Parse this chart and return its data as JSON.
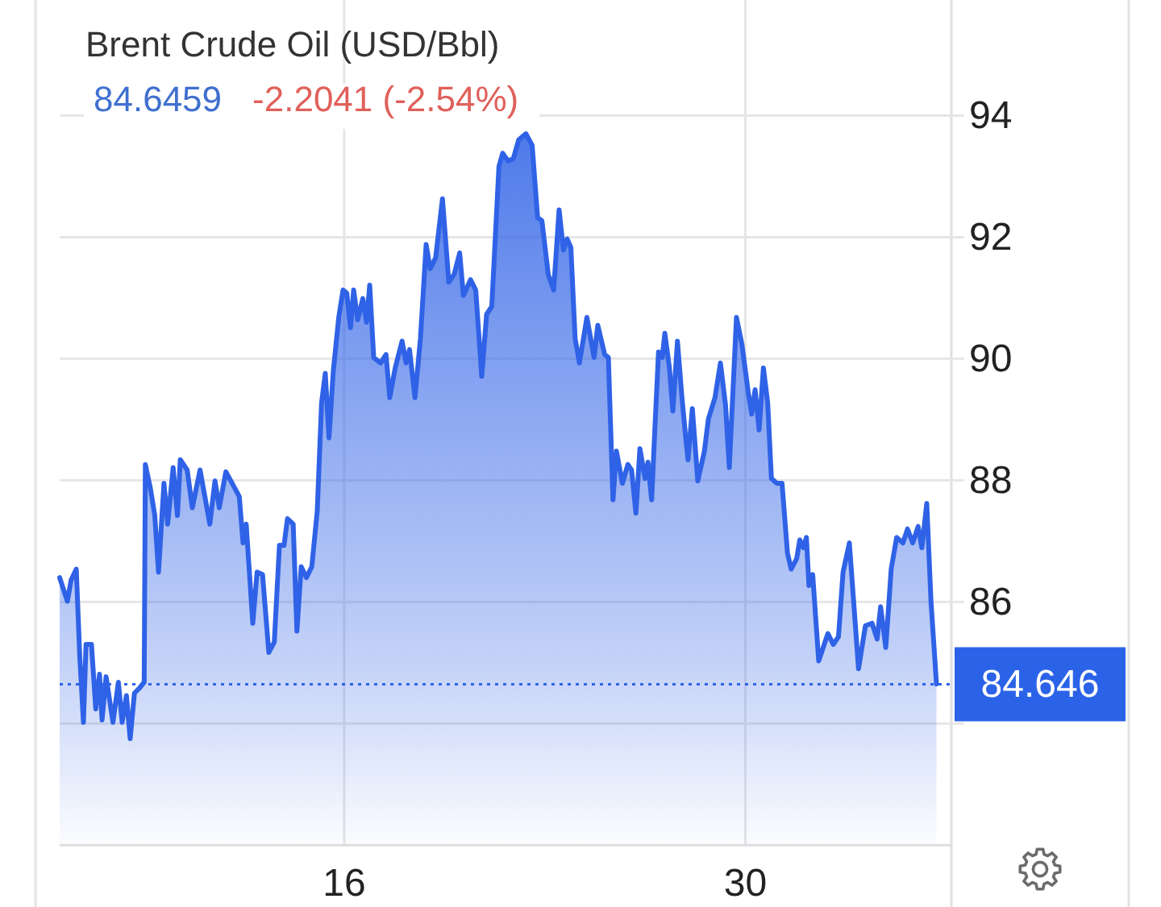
{
  "chart_data": {
    "type": "area",
    "title": "Brent Crude Oil (USD/Bbl)",
    "subtitle": "84.6459",
    "annotations": [
      "-2.2041 (-2.54%)"
    ],
    "x": [
      6.07,
      6.34,
      6.47,
      6.65,
      6.77,
      6.9,
      6.99,
      7.18,
      7.33,
      7.46,
      7.55,
      7.69,
      7.93,
      8.12,
      8.25,
      8.4,
      8.53,
      8.68,
      8.87,
      9.02,
      9.06,
      9.24,
      9.39,
      9.52,
      9.71,
      9.84,
      10.03,
      10.18,
      10.28,
      10.52,
      10.7,
      10.97,
      11.31,
      11.49,
      11.64,
      11.87,
      12.15,
      12.34,
      12.47,
      12.58,
      12.81,
      12.96,
      13.15,
      13.37,
      13.56,
      13.74,
      13.9,
      14.02,
      14.22,
      14.35,
      14.5,
      14.68,
      14.87,
      15.06,
      15.21,
      15.34,
      15.47,
      15.62,
      15.81,
      15.96,
      16.09,
      16.22,
      16.33,
      16.47,
      16.65,
      16.78,
      16.89,
      17.03,
      17.27,
      17.46,
      17.59,
      17.78,
      18.02,
      18.16,
      18.28,
      18.47,
      18.66,
      18.86,
      19.0,
      19.19,
      19.43,
      19.65,
      19.84,
      20.03,
      20.16,
      20.41,
      20.59,
      20.8,
      20.97,
      21.15,
      21.4,
      21.53,
      21.72,
      21.9,
      22.09,
      22.34,
      22.56,
      22.75,
      22.9,
      23.12,
      23.31,
      23.5,
      23.65,
      23.78,
      23.91,
      24.06,
      24.21,
      24.47,
      24.72,
      24.85,
      25.09,
      25.22,
      25.38,
      25.5,
      25.71,
      25.9,
      26.03,
      26.18,
      26.32,
      26.5,
      26.6,
      26.73,
      26.84,
      26.97,
      27.1,
      27.19,
      27.35,
      27.47,
      27.63,
      27.78,
      27.91,
      28.0,
      28.15,
      28.34,
      28.57,
      28.71,
      28.94,
      29.13,
      29.31,
      29.44,
      29.69,
      29.88,
      30.1,
      30.22,
      30.34,
      30.48,
      30.63,
      30.78,
      30.91,
      31.1,
      31.28,
      31.47,
      31.6,
      31.79,
      31.9,
      32.03,
      32.13,
      32.22,
      32.35,
      32.56,
      32.88,
      33.07,
      33.25,
      33.41,
      33.63,
      33.95,
      34.19,
      34.42,
      34.6,
      34.72,
      34.9,
      35.09,
      35.28,
      35.5,
      35.66,
      35.84,
      36.03,
      36.16,
      36.33,
      36.48,
      36.67
    ],
    "values": [
      86.4,
      86.01,
      86.36,
      86.54,
      85.12,
      84.02,
      85.3,
      85.3,
      84.24,
      84.81,
      84.06,
      84.77,
      84.02,
      84.68,
      84.02,
      84.46,
      83.75,
      84.5,
      84.59,
      84.68,
      88.26,
      87.86,
      87.42,
      86.49,
      87.95,
      87.28,
      88.21,
      87.42,
      88.34,
      88.17,
      87.55,
      88.17,
      87.28,
      87.99,
      87.55,
      88.14,
      87.9,
      87.73,
      86.97,
      87.28,
      85.65,
      86.49,
      86.45,
      85.17,
      85.34,
      86.93,
      86.93,
      87.37,
      87.28,
      85.52,
      86.58,
      86.4,
      86.58,
      87.5,
      89.27,
      89.76,
      88.7,
      89.8,
      90.68,
      91.13,
      91.08,
      90.51,
      91.13,
      90.64,
      90.99,
      90.6,
      91.21,
      90.02,
      89.93,
      90.07,
      89.36,
      89.85,
      90.29,
      89.93,
      90.15,
      89.36,
      90.33,
      91.88,
      91.48,
      91.66,
      92.63,
      91.26,
      91.39,
      91.74,
      91.04,
      91.3,
      91.13,
      89.71,
      90.73,
      90.86,
      93.16,
      93.38,
      93.25,
      93.29,
      93.6,
      93.7,
      93.51,
      92.32,
      92.27,
      91.39,
      91.13,
      92.45,
      91.79,
      91.97,
      91.83,
      90.33,
      89.93,
      90.68,
      90.02,
      90.55,
      90.07,
      90.02,
      87.68,
      88.48,
      87.95,
      88.26,
      88.17,
      87.46,
      88.52,
      88.03,
      88.3,
      87.68,
      88.83,
      90.11,
      90.02,
      90.42,
      89.85,
      89.14,
      90.29,
      89.4,
      88.74,
      88.34,
      89.18,
      87.99,
      88.48,
      89.01,
      89.36,
      89.93,
      89.23,
      88.21,
      90.68,
      90.24,
      89.45,
      89.09,
      89.49,
      88.83,
      89.85,
      89.27,
      88.03,
      87.95,
      87.95,
      86.8,
      86.54,
      86.71,
      87.02,
      86.89,
      87.06,
      86.27,
      86.45,
      85.03,
      85.48,
      85.3,
      85.43,
      86.49,
      86.97,
      84.9,
      85.61,
      85.65,
      85.39,
      85.92,
      85.25,
      86.54,
      87.06,
      86.97,
      87.2,
      86.97,
      87.24,
      86.89,
      87.62,
      86.0,
      84.65
    ],
    "color": "#2f62e6",
    "xlim": [
      6.07,
      37.19
    ],
    "xticks": [
      16,
      30
    ],
    "ylim": [
      82,
      95.9
    ],
    "yticks": [
      {
        "value": 84,
        "label": null
      },
      86,
      88,
      90,
      92,
      94
    ],
    "grid": true,
    "ref_lines": [
      {
        "axis": "y",
        "value": 84.646,
        "label": "84.646",
        "color": "#2b63e8",
        "line_style": "dotted"
      }
    ]
  }
}
